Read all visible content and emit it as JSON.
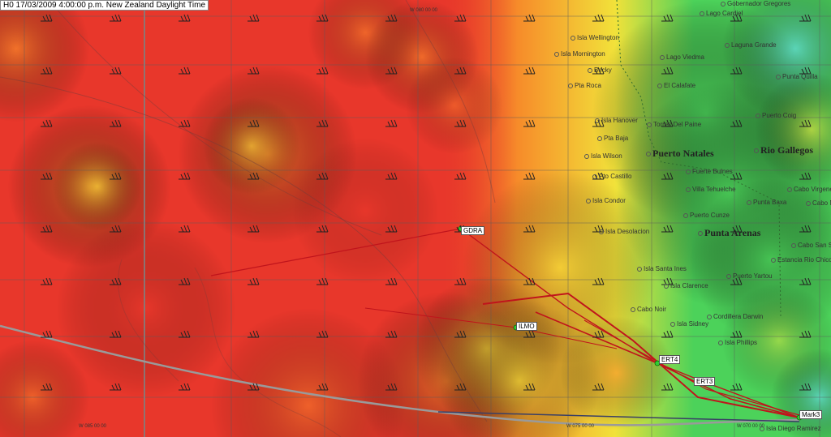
{
  "header": {
    "time_label": "H0 17/03/2009 4:00:00 p.m. New Zealand Daylight Time"
  },
  "longitudes": [
    {
      "label": "W 085 00 00"
    },
    {
      "label": "W 080 00 00"
    },
    {
      "label": "W 075 00 00"
    },
    {
      "label": "W 070 00 00"
    }
  ],
  "waypoints": [
    {
      "label": "GDRA"
    },
    {
      "label": "ILMO"
    },
    {
      "label": "ERT4"
    },
    {
      "label": "ERT3"
    },
    {
      "label": "Mark3"
    }
  ],
  "places": [
    {
      "label": "Gobernador Gregores",
      "big": false
    },
    {
      "label": "Lago Cardiel",
      "big": false
    },
    {
      "label": "Isla Wellington",
      "big": false
    },
    {
      "label": "Laguna Grande",
      "big": false
    },
    {
      "label": "Isla Mornington",
      "big": false
    },
    {
      "label": "Lago Viedma",
      "big": false
    },
    {
      "label": "Becky",
      "big": false
    },
    {
      "label": "Punta Quilla",
      "big": false
    },
    {
      "label": "Pta Roca",
      "big": false
    },
    {
      "label": "El Calafate",
      "big": false
    },
    {
      "label": "Isla Hanover",
      "big": false
    },
    {
      "label": "Puerto Coig",
      "big": false
    },
    {
      "label": "Torres Del Paine",
      "big": false
    },
    {
      "label": "Pta Baja",
      "big": false
    },
    {
      "label": "Puerto Natales",
      "big": true
    },
    {
      "label": "Rio Gallegos",
      "big": true
    },
    {
      "label": "Isla Wilson",
      "big": false
    },
    {
      "label": "Fuerte Bulnes",
      "big": false
    },
    {
      "label": "Pto Castillo",
      "big": false
    },
    {
      "label": "Villa Tehuelche",
      "big": false
    },
    {
      "label": "Cabo Virgenes",
      "big": false
    },
    {
      "label": "Isla Condor",
      "big": false
    },
    {
      "label": "Punta Baxa",
      "big": false
    },
    {
      "label": "Puerto Cunze",
      "big": false
    },
    {
      "label": "Cabo Nombre",
      "big": false
    },
    {
      "label": "Isla Desolacion",
      "big": false
    },
    {
      "label": "Punta Arenas",
      "big": true
    },
    {
      "label": "Cabo San Sebastian",
      "big": false
    },
    {
      "label": "Isla Santa Ines",
      "big": false
    },
    {
      "label": "Estancia Rio Chico",
      "big": false
    },
    {
      "label": "Puerto Yartou",
      "big": false
    },
    {
      "label": "Isla Clarence",
      "big": false
    },
    {
      "label": "Cabo Noir",
      "big": false
    },
    {
      "label": "Cordillera Darwin",
      "big": false
    },
    {
      "label": "Isla Sidney",
      "big": false
    },
    {
      "label": "Isla Phillips",
      "big": false
    },
    {
      "label": "Isla Diego Ramirez",
      "big": false
    }
  ],
  "colors": {
    "heat_red": "#e8372b",
    "heat_orange": "#f78b2a",
    "heat_yellow": "#f2e23a",
    "heat_green": "#4cd25a",
    "heat_cyan": "#62d8e0",
    "route": "#c0141c",
    "gc_line": "#9a9a9a"
  }
}
